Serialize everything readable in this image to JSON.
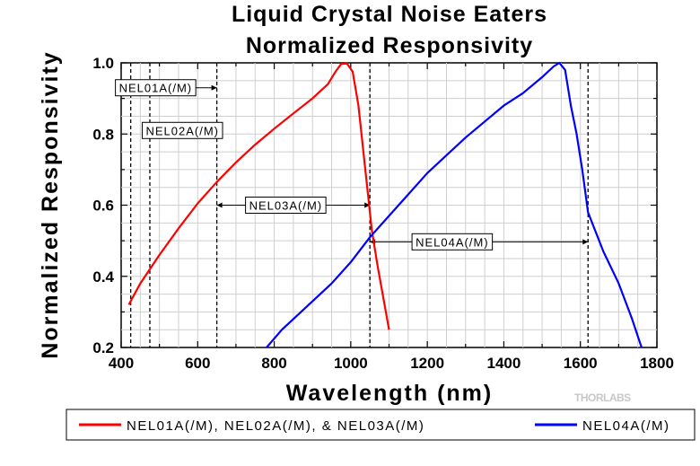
{
  "chart_data": {
    "type": "line",
    "title": [
      "Liquid Crystal Noise Eaters",
      "Normalized Responsivity"
    ],
    "xlabel": "Wavelength (nm)",
    "ylabel": "Normalized Responsivity",
    "xlim": [
      400,
      1800
    ],
    "ylim": [
      0.2,
      1.0
    ],
    "x_ticks": [
      400,
      600,
      800,
      1000,
      1200,
      1400,
      1600,
      1800
    ],
    "x_tick_labels": [
      "400",
      "600",
      "800",
      "1000",
      "1200",
      "1400",
      "1600",
      "1800"
    ],
    "y_ticks": [
      0.2,
      0.4,
      0.6,
      0.8,
      1.0
    ],
    "y_tick_labels": [
      "0.2",
      "0.4",
      "0.6",
      "0.8",
      "1.0"
    ],
    "grid": true,
    "series": [
      {
        "name": "NEL01A(/M), NEL02A(/M), & NEL03A(/M)",
        "color": "#ff0000",
        "points": [
          [
            420,
            0.32
          ],
          [
            450,
            0.38
          ],
          [
            500,
            0.46
          ],
          [
            550,
            0.535
          ],
          [
            600,
            0.605
          ],
          [
            650,
            0.665
          ],
          [
            700,
            0.72
          ],
          [
            750,
            0.77
          ],
          [
            800,
            0.815
          ],
          [
            850,
            0.858
          ],
          [
            900,
            0.9
          ],
          [
            940,
            0.94
          ],
          [
            960,
            0.975
          ],
          [
            975,
            0.997
          ],
          [
            990,
            0.998
          ],
          [
            1005,
            0.975
          ],
          [
            1020,
            0.88
          ],
          [
            1040,
            0.68
          ],
          [
            1055,
            0.53
          ],
          [
            1070,
            0.43
          ],
          [
            1085,
            0.34
          ],
          [
            1100,
            0.25
          ]
        ]
      },
      {
        "name": "NEL04A(/M)",
        "color": "#0000ff",
        "points": [
          [
            780,
            0.2
          ],
          [
            820,
            0.25
          ],
          [
            870,
            0.3
          ],
          [
            950,
            0.38
          ],
          [
            1000,
            0.44
          ],
          [
            1050,
            0.51
          ],
          [
            1100,
            0.57
          ],
          [
            1150,
            0.63
          ],
          [
            1200,
            0.69
          ],
          [
            1300,
            0.79
          ],
          [
            1400,
            0.88
          ],
          [
            1450,
            0.915
          ],
          [
            1500,
            0.96
          ],
          [
            1530,
            0.99
          ],
          [
            1545,
            1.0
          ],
          [
            1560,
            0.98
          ],
          [
            1575,
            0.88
          ],
          [
            1590,
            0.8
          ],
          [
            1605,
            0.7
          ],
          [
            1620,
            0.58
          ],
          [
            1660,
            0.47
          ],
          [
            1700,
            0.38
          ],
          [
            1735,
            0.28
          ],
          [
            1760,
            0.2
          ]
        ]
      }
    ],
    "reference_lines_x": [
      425,
      475,
      650,
      1050,
      1620
    ],
    "ranges": [
      {
        "label": "NEL01A(/M)",
        "from": 425,
        "to": 650,
        "label_x": 490,
        "label_y": 0.93
      },
      {
        "label": "NEL02A(/M)",
        "from": 475,
        "to": 650,
        "label_x": 560,
        "label_y": 0.81
      },
      {
        "label": "NEL03A(/M)",
        "from": 650,
        "to": 1050,
        "label_x": 830,
        "label_y": 0.6
      },
      {
        "label": "NEL04A(/M)",
        "from": 1050,
        "to": 1620,
        "label_x": 1265,
        "label_y": 0.497
      }
    ],
    "legend": {
      "position": "bottom"
    }
  },
  "watermark": "THORLABS"
}
